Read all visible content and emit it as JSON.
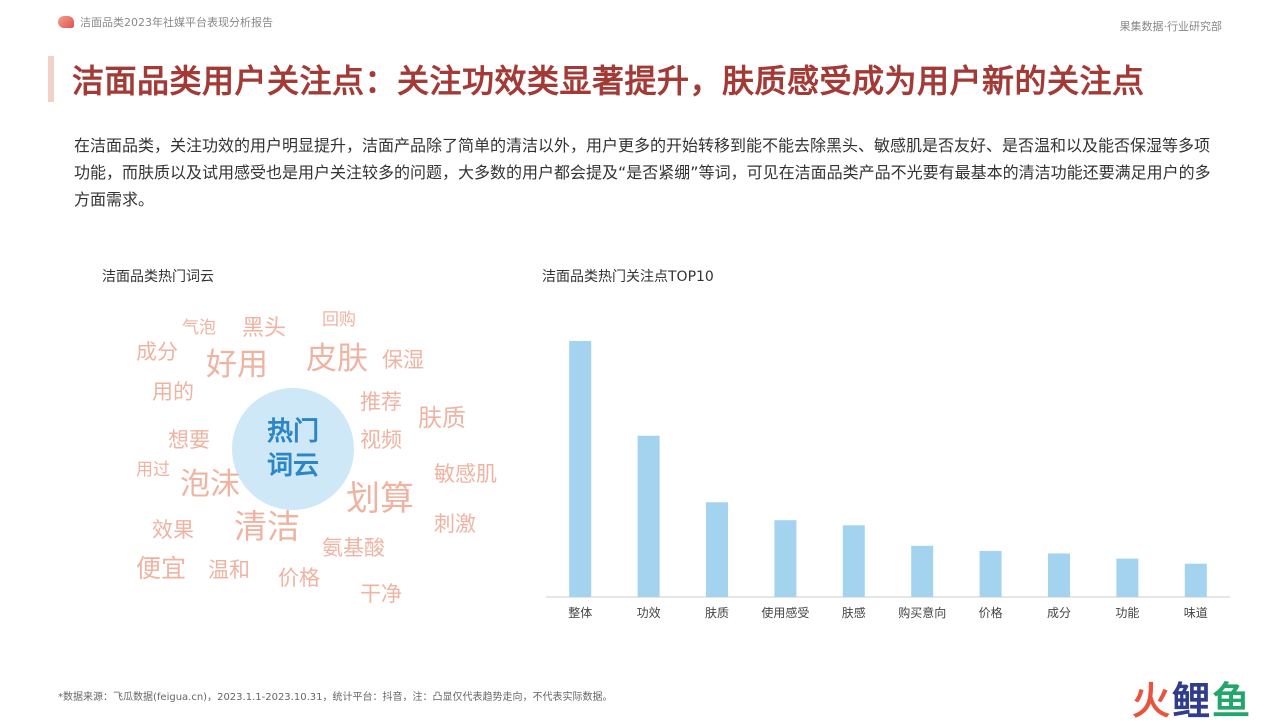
{
  "header": {
    "report_title": "洁面品类2023年社媒平台表现分析报告",
    "org": "果集数据·行业研究部"
  },
  "headline": "洁面品类用户关注点：关注功效类显著提升，肤质感受成为用户新的关注点",
  "intro": "在洁面品类，关注功效的用户明显提升，洁面产品除了简单的清洁以外，用户更多的开始转移到能不能去除黑头、敏感肌是否友好、是否温和以及能否保湿等多项功能，而肤质以及试用感受也是用户关注较多的问题，大多数的用户都会提及“是否紧绷”等词，可见在洁面品类产品不光要有最基本的清洁功能还要满足用户的多方面需求。",
  "wordcloud": {
    "title": "洁面品类热门词云",
    "center": "热门词云",
    "words": [
      "气泡",
      "黑头",
      "回购",
      "成分",
      "好用",
      "皮肤",
      "保湿",
      "用的",
      "推荐",
      "肤质",
      "想要",
      "视频",
      "用过",
      "泡沫",
      "敏感肌",
      "划算",
      "效果",
      "清洁",
      "刺激",
      "便宜",
      "温和",
      "氨基酸",
      "价格",
      "干净"
    ],
    "word_color": "#efb3a2",
    "center_color": "#2a86c6",
    "center_bg": "#cfe8f7"
  },
  "chart_data": {
    "type": "bar",
    "title": "洁面品类热门关注点TOP10",
    "categories": [
      "整体",
      "功效",
      "肤质",
      "使用感受",
      "肤感",
      "购买意向",
      "价格",
      "成分",
      "功能",
      "味道"
    ],
    "values": [
      100,
      63,
      37,
      30,
      28,
      20,
      18,
      17,
      15,
      13
    ],
    "ylim": [
      0,
      100
    ],
    "bar_color": "#a3d3ee",
    "grid": false
  },
  "footer": {
    "source": "*数据来源：飞瓜数据(feigua.cn)，2023.1.1-2023.10.31，统计平台：抖音，注：凸显仅代表趋势走向，不代表实际数据。",
    "brand": [
      "火",
      "鲤",
      "鱼"
    ]
  }
}
